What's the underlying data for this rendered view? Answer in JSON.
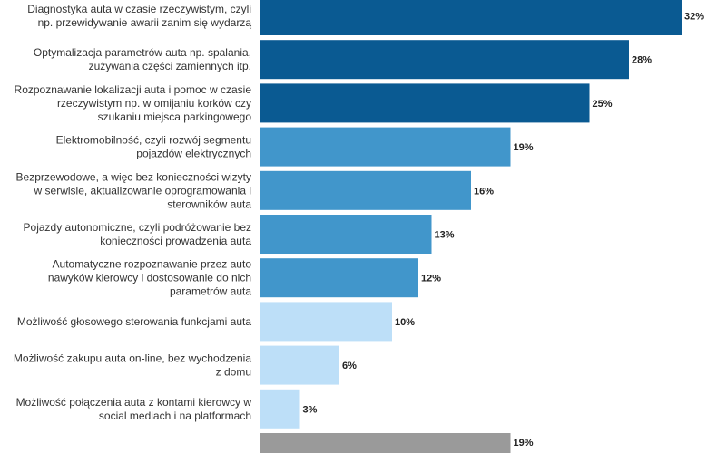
{
  "chart_data": {
    "type": "bar",
    "orientation": "horizontal",
    "categories": [
      [
        "Diagnostyka auta w czasie rzeczywistym, czyli",
        "np. przewidywanie awarii zanim się wydarzą"
      ],
      [
        "Optymalizacja parametrów auta np. spalania,",
        "zużywania części zamiennych itp."
      ],
      [
        "Rozpoznawanie lokalizacji auta i pomoc w czasie",
        "rzeczywistym np. w omijaniu korków czy",
        "szukaniu miejsca parkingowego"
      ],
      [
        "Elektromobilność, czyli rozwój segmentu",
        "pojazdów elektrycznych"
      ],
      [
        "Bezprzewodowe, a więc bez konieczności wizyty",
        "w serwisie, aktualizowanie oprogramowania i",
        "sterowników auta"
      ],
      [
        "Pojazdy autonomiczne, czyli podróżowanie bez",
        "konieczności prowadzenia auta"
      ],
      [
        "Automatyczne rozpoznawanie przez auto",
        "nawyków kierowcy i dostosowanie do nich",
        "parametrów auta"
      ],
      [
        "Możliwość głosowego sterowania funkcjami auta"
      ],
      [
        "Możliwość zakupu auta on-line, bez wychodzenia",
        "z domu"
      ],
      [
        "Możliwość połączenia auta z kontami kierowcy w",
        "social mediach i na platformach"
      ]
    ],
    "values": [
      32,
      28,
      25,
      19,
      16,
      13,
      12,
      10,
      6,
      3
    ],
    "value_labels": [
      "32%",
      "28%",
      "25%",
      "19%",
      "16%",
      "13%",
      "12%",
      "10%",
      "6%",
      "3%"
    ],
    "colors": [
      "#0a5a92",
      "#0a5a92",
      "#0a5a92",
      "#4196cb",
      "#4196cb",
      "#4196cb",
      "#4196cb",
      "#bddff8",
      "#bddff8",
      "#bddff8"
    ],
    "extra_bar": {
      "value": 19,
      "color": "#9a9a9a",
      "partial_label": "19%"
    },
    "xlim": [
      0,
      32
    ],
    "title": "",
    "xlabel": "",
    "ylabel": "",
    "grid": false,
    "legend": "none"
  }
}
